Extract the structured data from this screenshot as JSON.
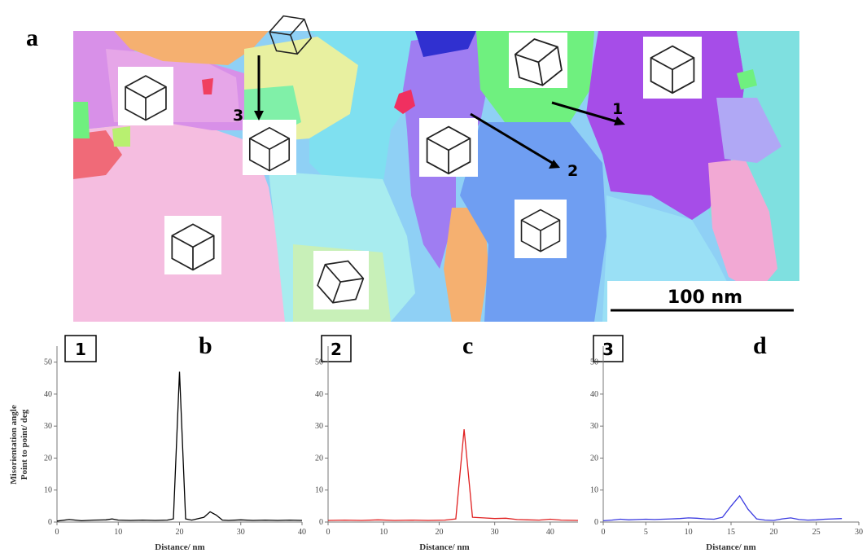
{
  "panel_labels": {
    "a": "a",
    "b": "b",
    "c": "c",
    "d": "d"
  },
  "orientation_map": {
    "scale_bar_label": "100 nm",
    "line_labels": [
      "1",
      "2",
      "3"
    ],
    "colors": {
      "pink": "#f2a9d4",
      "light_pink": "#f5bde0",
      "magenta": "#d890e8",
      "purple": "#a64de8",
      "violet": "#9f7df2",
      "cyan": "#7fe0f0",
      "sky": "#8fd0f5",
      "blue": "#6f9ef2",
      "green": "#6ff07f",
      "light_green": "#c8f0b8",
      "yellow": "#e8f0a0",
      "orange": "#f5b070",
      "red": "#f05070",
      "navy": "#3030d0"
    }
  },
  "chart_data": [
    {
      "type": "line",
      "panel": "b",
      "box_label": "1",
      "xlabel": "Distance/ nm",
      "ylabel_line1": "Misorientation angle",
      "ylabel_line2": "Point to point/ deg",
      "xlim": [
        0,
        40
      ],
      "ylim": [
        0,
        55
      ],
      "xticks": [
        0,
        10,
        20,
        30,
        40
      ],
      "yticks": [
        0,
        10,
        20,
        30,
        40,
        50
      ],
      "color": "#000000",
      "x": [
        0,
        2,
        4,
        6,
        8,
        9,
        10,
        12,
        14,
        16,
        18,
        19,
        20,
        21,
        22,
        24,
        25,
        26,
        27,
        28,
        30,
        32,
        34,
        36,
        38,
        40
      ],
      "y": [
        0.3,
        0.8,
        0.4,
        0.6,
        0.7,
        1.0,
        0.6,
        0.5,
        0.6,
        0.5,
        0.6,
        1.0,
        47,
        1.0,
        0.6,
        1.5,
        3.2,
        2.2,
        0.6,
        0.5,
        0.7,
        0.5,
        0.6,
        0.5,
        0.6,
        0.5
      ]
    },
    {
      "type": "line",
      "panel": "c",
      "box_label": "2",
      "xlabel": "Distance/ nm",
      "xlim": [
        0,
        45
      ],
      "ylim": [
        0,
        55
      ],
      "xticks": [
        0,
        10,
        20,
        30,
        40
      ],
      "yticks": [
        0,
        10,
        20,
        30,
        40,
        50
      ],
      "color": "#e02020",
      "x": [
        0,
        3,
        6,
        9,
        12,
        15,
        18,
        21,
        23,
        24.5,
        26,
        28,
        30,
        32,
        34,
        36,
        38,
        40,
        42,
        45
      ],
      "y": [
        0.5,
        0.6,
        0.5,
        0.7,
        0.5,
        0.6,
        0.5,
        0.6,
        1.0,
        29,
        1.5,
        1.3,
        1.1,
        1.2,
        0.8,
        0.7,
        0.6,
        0.9,
        0.6,
        0.5
      ]
    },
    {
      "type": "line",
      "panel": "d",
      "box_label": "3",
      "xlabel": "Distance/ nm",
      "xlim": [
        0,
        30
      ],
      "ylim": [
        0,
        55
      ],
      "xticks": [
        0,
        5,
        10,
        15,
        20,
        25,
        30
      ],
      "yticks": [
        0,
        10,
        20,
        30,
        40,
        50
      ],
      "color": "#3a3ae0",
      "x": [
        0,
        1,
        2,
        3,
        4,
        5,
        6,
        7,
        8,
        9,
        10,
        11,
        12,
        13,
        14,
        15,
        16,
        17,
        18,
        19,
        20,
        21,
        22,
        23,
        24,
        25,
        26,
        27,
        28
      ],
      "y": [
        0.4,
        0.6,
        0.9,
        0.7,
        0.8,
        0.9,
        0.8,
        0.9,
        1.0,
        1.1,
        1.3,
        1.2,
        1.0,
        0.9,
        1.5,
        5.0,
        8.2,
        4.0,
        1.0,
        0.6,
        0.5,
        1.0,
        1.3,
        0.8,
        0.6,
        0.7,
        0.9,
        1.0,
        1.1
      ]
    }
  ]
}
